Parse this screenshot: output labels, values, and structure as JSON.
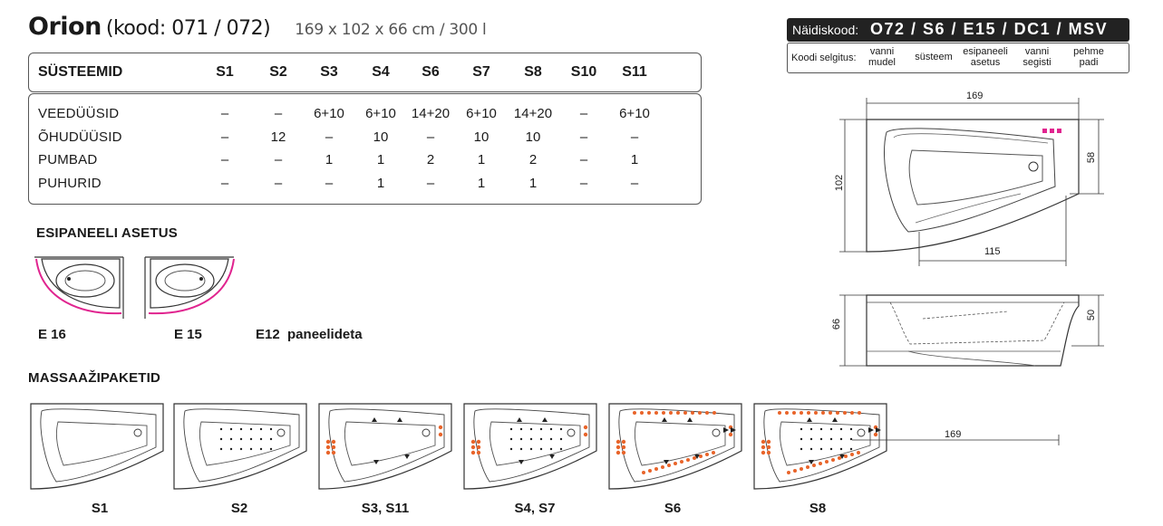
{
  "title": {
    "name": "Orion",
    "code": "(kood: 071 / 072)",
    "dims": "169 x 102 x 66 cm / 300 l"
  },
  "systems_table": {
    "header_label": "SÜSTEEMID",
    "columns": [
      "S1",
      "S2",
      "S3",
      "S4",
      "S6",
      "S7",
      "S8",
      "S10",
      "S11"
    ],
    "rows": [
      {
        "label": "VEEDÜÜSID",
        "values": [
          "–",
          "–",
          "6+10",
          "6+10",
          "14+20",
          "6+10",
          "14+20",
          "–",
          "6+10"
        ]
      },
      {
        "label": "ÕHUDÜÜSID",
        "values": [
          "–",
          "12",
          "–",
          "10",
          "–",
          "10",
          "10",
          "–",
          "–"
        ]
      },
      {
        "label": "PUMBAD",
        "values": [
          "–",
          "–",
          "1",
          "1",
          "2",
          "1",
          "2",
          "–",
          "1"
        ]
      },
      {
        "label": "PUHURID",
        "values": [
          "–",
          "–",
          "–",
          "1",
          "–",
          "1",
          "1",
          "–",
          "–"
        ]
      }
    ]
  },
  "panel": {
    "title": "ESIPANEELI ASETUS",
    "options": [
      {
        "label": "E 16"
      },
      {
        "label": "E 15"
      },
      {
        "label": "E12  paneelideta"
      }
    ]
  },
  "example": {
    "label": "Näidiskood:",
    "code": "O72 / S6 / E15 / DC1 / MSV",
    "legend_label": "Koodi selgitus:",
    "legend": [
      "vanni\nmudel",
      "süsteem",
      "esipaneeli\nasetus",
      "vanni\nsegisti",
      "pehme\npadi"
    ]
  },
  "dimensions": {
    "length": "169",
    "width": "102",
    "inner": "58",
    "inner_len": "115",
    "height": "66",
    "height2": "50",
    "pkg_len": "169"
  },
  "massage": {
    "title": "MASSAAŽIPAKETID",
    "packages": [
      "S1",
      "S2",
      "S3, S11",
      "S4, S7",
      "S6",
      "S8"
    ]
  },
  "colors": {
    "accent_pink": "#e0248f",
    "jet_orange": "#e8642a",
    "dark": "#222222"
  }
}
